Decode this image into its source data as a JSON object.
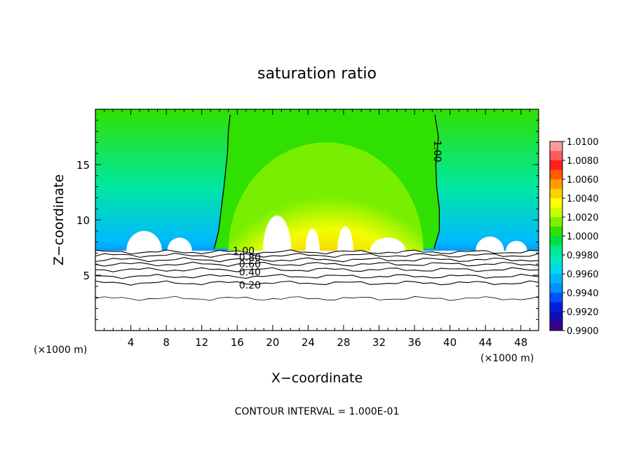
{
  "chart_data": {
    "type": "heatmap",
    "title": "saturation ratio",
    "xlabel": "X−coordinate",
    "ylabel": "Z−coordinate",
    "x_unit": "(×1000 m)",
    "z_unit": "(×1000 m)",
    "xlim": [
      0,
      50
    ],
    "ylim": [
      0,
      20
    ],
    "x_ticks": [
      4,
      8,
      12,
      16,
      20,
      24,
      28,
      32,
      36,
      40,
      44,
      48
    ],
    "y_ticks": [
      5,
      10,
      15
    ],
    "colorbar": {
      "levels": [
        "1.0100",
        "1.0080",
        "1.0060",
        "1.0040",
        "1.0020",
        "1.0000",
        "0.9980",
        "0.9960",
        "0.9940",
        "0.9920",
        "0.9900"
      ],
      "colors": [
        "#ff9a9a",
        "#ff5a5a",
        "#ff2020",
        "#ff5a00",
        "#ff9a00",
        "#ffd000",
        "#ffff00",
        "#c8ff00",
        "#7cf000",
        "#30e000",
        "#00e040",
        "#00e890",
        "#00e8c0",
        "#00d8e8",
        "#00b8ff",
        "#0090ff",
        "#0050ff",
        "#0020e0",
        "#1010b0",
        "#3a0090"
      ]
    },
    "contour_labels": [
      "1.00",
      "1.00",
      "0.80",
      "0.60",
      "0.40",
      "0.20"
    ],
    "contour_label_positions": [
      [
        15.5,
        7.2
      ],
      [
        38.2,
        17.5
      ],
      [
        16.2,
        6.6
      ],
      [
        16.2,
        6.0
      ],
      [
        16.2,
        5.3
      ],
      [
        16.2,
        4.1
      ]
    ],
    "contour_lines_z": [
      2.9,
      4.3,
      4.9,
      5.5,
      6.0,
      6.4,
      6.8,
      7.1
    ],
    "boundary_1_00_left": [
      [
        15.2,
        19.5
      ],
      [
        15.0,
        18
      ],
      [
        14.9,
        16
      ],
      [
        14.5,
        13
      ],
      [
        14.2,
        11
      ],
      [
        13.9,
        9
      ],
      [
        13.4,
        7.4
      ]
    ],
    "boundary_1_00_right": [
      [
        38.3,
        19.5
      ],
      [
        38.7,
        17.5
      ],
      [
        38.4,
        15
      ],
      [
        38.5,
        13
      ],
      [
        38.8,
        11
      ],
      [
        38.8,
        9
      ],
      [
        38.2,
        7.4
      ]
    ],
    "note": "CONTOUR INTERVAL =  1.000E-01"
  }
}
